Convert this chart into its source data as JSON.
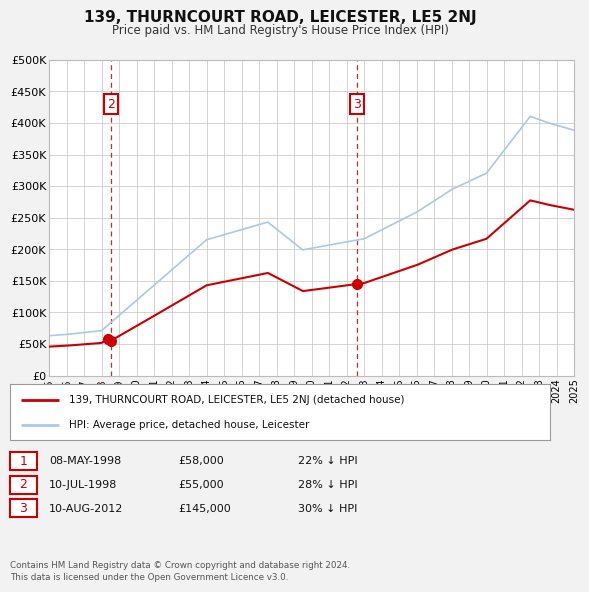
{
  "title": "139, THURNCOURT ROAD, LEICESTER, LE5 2NJ",
  "subtitle": "Price paid vs. HM Land Registry's House Price Index (HPI)",
  "bg_color": "#f2f2f2",
  "plot_bg_color": "#ffffff",
  "grid_color": "#cccccc",
  "red_line_color": "#cc0000",
  "blue_line_color": "#aac8e8",
  "marker_color": "#cc0000",
  "annotation_box_color": "#cc0000",
  "dashed_line_color": "#cc0000",
  "legend_label_red": "139, THURNCOURT ROAD, LEICESTER, LE5 2NJ (detached house)",
  "legend_label_blue": "HPI: Average price, detached house, Leicester",
  "footer": "Contains HM Land Registry data © Crown copyright and database right 2024.\nThis data is licensed under the Open Government Licence v3.0.",
  "table": [
    {
      "num": "1",
      "date": "08-MAY-1998",
      "price": "£58,000",
      "pct": "22% ↓ HPI"
    },
    {
      "num": "2",
      "date": "10-JUL-1998",
      "price": "£55,000",
      "pct": "28% ↓ HPI"
    },
    {
      "num": "3",
      "date": "10-AUG-2012",
      "price": "£145,000",
      "pct": "30% ↓ HPI"
    }
  ],
  "sale_points": [
    {
      "year": 1998.37,
      "value": 58000
    },
    {
      "year": 1998.53,
      "value": 55000
    },
    {
      "year": 2012.61,
      "value": 145000
    }
  ],
  "vline_years": [
    1998.53,
    2012.61
  ],
  "annot2_year": 1998.53,
  "annot3_year": 2012.61,
  "ylim": [
    0,
    500000
  ],
  "xlim": [
    1995,
    2025
  ],
  "yticks": [
    0,
    50000,
    100000,
    150000,
    200000,
    250000,
    300000,
    350000,
    400000,
    450000,
    500000
  ],
  "ytick_labels": [
    "£0",
    "£50K",
    "£100K",
    "£150K",
    "£200K",
    "£250K",
    "£300K",
    "£350K",
    "£400K",
    "£450K",
    "£500K"
  ],
  "xtick_years": [
    1995,
    1996,
    1997,
    1998,
    1999,
    2000,
    2001,
    2002,
    2003,
    2004,
    2005,
    2006,
    2007,
    2008,
    2009,
    2010,
    2011,
    2012,
    2013,
    2014,
    2015,
    2016,
    2017,
    2018,
    2019,
    2020,
    2021,
    2022,
    2023,
    2024,
    2025
  ]
}
